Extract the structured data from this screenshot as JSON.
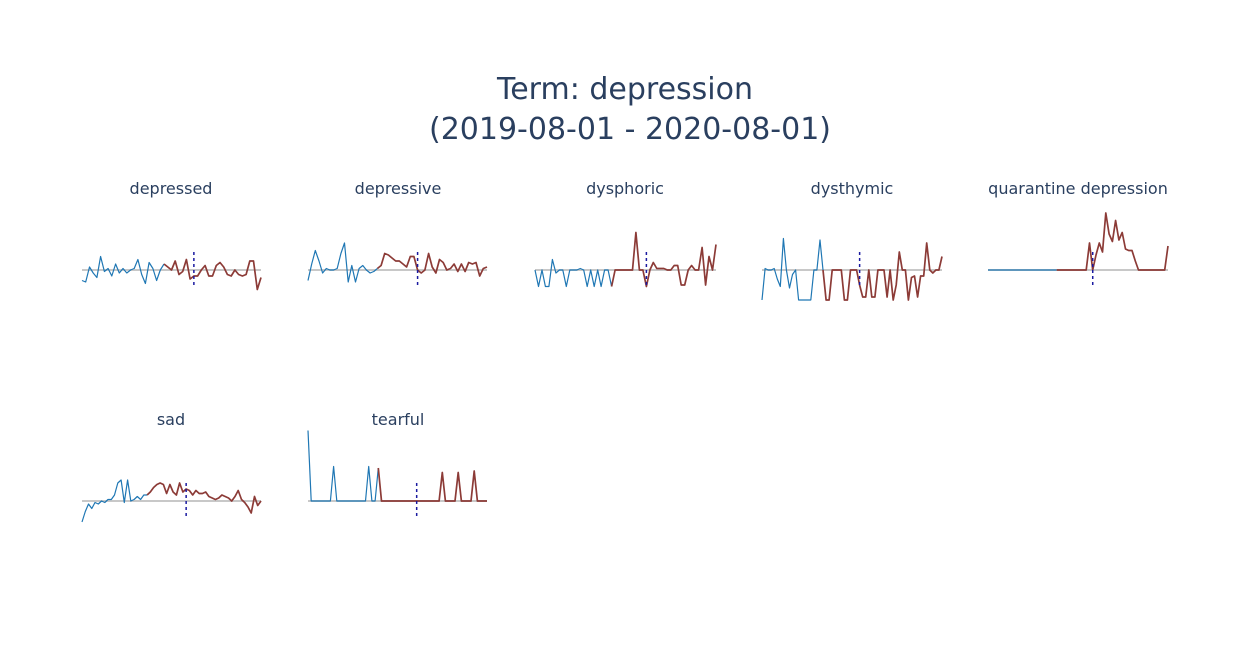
{
  "title": {
    "line1": "Term: depression",
    "line2": "(2019-08-01 - 2020-08-01)"
  },
  "colors": {
    "pre": "#1f77b4",
    "post": "#8c3b37",
    "baseline": "#c8c8c8",
    "marker": "#1a1aa0"
  },
  "chart_data": [
    {
      "type": "line",
      "title": "depressed",
      "split_index": 22,
      "marker_index": 30,
      "values": [
        -0.35,
        -0.4,
        0.1,
        -0.1,
        -0.25,
        0.45,
        -0.05,
        0.05,
        -0.2,
        0.2,
        -0.1,
        0.05,
        -0.1,
        0.0,
        0.05,
        0.35,
        -0.15,
        -0.45,
        0.25,
        0.05,
        -0.35,
        0.0,
        0.2,
        0.1,
        0.0,
        0.3,
        -0.15,
        -0.05,
        0.35,
        -0.3,
        -0.2,
        -0.2,
        0.0,
        0.15,
        -0.2,
        -0.2,
        0.15,
        0.25,
        0.1,
        -0.15,
        -0.2,
        0.0,
        -0.15,
        -0.2,
        -0.15,
        0.3,
        0.3,
        -0.65,
        -0.25
      ]
    },
    {
      "type": "line",
      "title": "depressive",
      "split_index": 19,
      "marker_index": 30,
      "values": [
        -0.35,
        0.2,
        0.65,
        0.3,
        -0.1,
        0.05,
        0.0,
        0.0,
        0.05,
        0.55,
        0.9,
        -0.4,
        0.15,
        -0.4,
        0.05,
        0.15,
        0.0,
        -0.1,
        -0.05,
        0.05,
        0.15,
        0.55,
        0.5,
        0.4,
        0.3,
        0.3,
        0.2,
        0.1,
        0.45,
        0.45,
        0.0,
        -0.1,
        0.0,
        0.55,
        0.1,
        -0.1,
        0.35,
        0.25,
        0.0,
        0.05,
        0.2,
        -0.05,
        0.2,
        -0.05,
        0.25,
        0.2,
        0.25,
        -0.2,
        0.05,
        0.1
      ]
    },
    {
      "type": "line",
      "title": "dysphoric",
      "split_index": 22,
      "marker_index": 32,
      "values": [
        0.0,
        -0.55,
        0.0,
        -0.55,
        -0.55,
        0.35,
        -0.1,
        0.0,
        0.0,
        -0.55,
        0.0,
        0.0,
        0.0,
        0.05,
        0.0,
        -0.55,
        0.0,
        -0.55,
        0.0,
        -0.55,
        0.0,
        0.0,
        -0.55,
        0.0,
        0.0,
        0.0,
        0.0,
        0.0,
        0.0,
        1.25,
        0.0,
        0.0,
        -0.55,
        0.0,
        0.25,
        0.05,
        0.05,
        0.05,
        0.0,
        0.0,
        0.15,
        0.15,
        -0.5,
        -0.5,
        0.0,
        0.15,
        0.0,
        0.0,
        0.75,
        -0.5,
        0.45,
        0.0,
        0.85
      ]
    },
    {
      "type": "line",
      "title": "dysthymic",
      "split_index": 20,
      "marker_index": 32,
      "values": [
        -1.0,
        0.05,
        0.0,
        0.0,
        0.05,
        -0.3,
        -0.55,
        1.05,
        0.0,
        -0.6,
        -0.15,
        0.0,
        -1.0,
        -1.0,
        -1.0,
        -1.0,
        -1.0,
        0.0,
        0.0,
        1.0,
        0.0,
        -1.0,
        -1.0,
        0.0,
        0.0,
        0.0,
        0.0,
        -1.0,
        -1.0,
        0.0,
        0.0,
        0.0,
        -0.5,
        -0.9,
        -0.9,
        0.0,
        -0.9,
        -0.9,
        0.0,
        0.0,
        0.0,
        -0.9,
        0.0,
        -1.0,
        -0.5,
        0.6,
        0.0,
        0.0,
        -1.0,
        -0.25,
        -0.2,
        -0.9,
        -0.2,
        -0.2,
        0.9,
        0.0,
        -0.1,
        0.0,
        0.0,
        0.45
      ]
    },
    {
      "type": "line",
      "title": "quarantine depression",
      "split_index": 21,
      "marker_index": 32,
      "values": [
        0,
        0,
        0,
        0,
        0,
        0,
        0,
        0,
        0,
        0,
        0,
        0,
        0,
        0,
        0,
        0,
        0,
        0,
        0,
        0,
        0,
        0,
        0,
        0,
        0,
        0,
        0,
        0,
        0,
        0,
        0,
        0.9,
        0,
        0.5,
        0.9,
        0.6,
        1.9,
        1.2,
        0.95,
        1.65,
        1.0,
        1.25,
        0.7,
        0.65,
        0.65,
        0.3,
        0.0,
        0.0,
        0.0,
        0.0,
        0.0,
        0.0,
        0.0,
        0.0,
        0.0,
        0.8
      ]
    },
    {
      "type": "line",
      "title": "sad",
      "split_index": 20,
      "marker_index": 32,
      "values": [
        -0.7,
        -0.35,
        -0.1,
        -0.25,
        -0.05,
        -0.1,
        0.0,
        -0.05,
        0.05,
        0.05,
        0.2,
        0.6,
        0.7,
        -0.05,
        0.7,
        0.0,
        0.05,
        0.15,
        0.05,
        0.2,
        0.2,
        0.3,
        0.45,
        0.55,
        0.6,
        0.55,
        0.25,
        0.55,
        0.3,
        0.2,
        0.6,
        0.3,
        0.4,
        0.35,
        0.2,
        0.35,
        0.25,
        0.25,
        0.3,
        0.15,
        0.1,
        0.05,
        0.1,
        0.2,
        0.15,
        0.1,
        0.0,
        0.15,
        0.35,
        0.05,
        -0.05,
        -0.2,
        -0.4,
        0.15,
        -0.15,
        0.0
      ]
    },
    {
      "type": "line",
      "title": "tearful",
      "split_index": 22,
      "marker_index": 34,
      "values": [
        2.35,
        0,
        0,
        0,
        0,
        0,
        0,
        0,
        1.15,
        0,
        0,
        0,
        0,
        0,
        0,
        0,
        0,
        0,
        0,
        1.15,
        0,
        0,
        1.1,
        0,
        0,
        0,
        0,
        0,
        0,
        0,
        0,
        0,
        0,
        0,
        0,
        0,
        0,
        0,
        0,
        0,
        0,
        0,
        0.95,
        0,
        0,
        0,
        0,
        0.95,
        0,
        0,
        0,
        0,
        1.0,
        0,
        0,
        0,
        0
      ]
    }
  ]
}
